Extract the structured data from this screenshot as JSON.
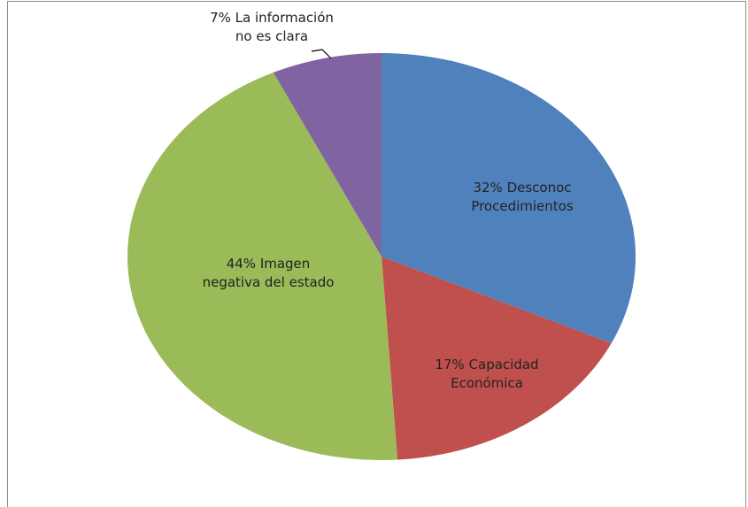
{
  "chart_data": {
    "type": "pie",
    "categories": [
      "Desconoc Procedimientos",
      "Capacidad Económica",
      "Imagen negativa del estado",
      "La información no es clara"
    ],
    "values": [
      32,
      17,
      44,
      7
    ],
    "value_labels": [
      "32%",
      "17%",
      "44%",
      "7%"
    ],
    "colors": [
      "#4f81bd",
      "#c0504d",
      "#9bbb59",
      "#8064a2"
    ]
  }
}
